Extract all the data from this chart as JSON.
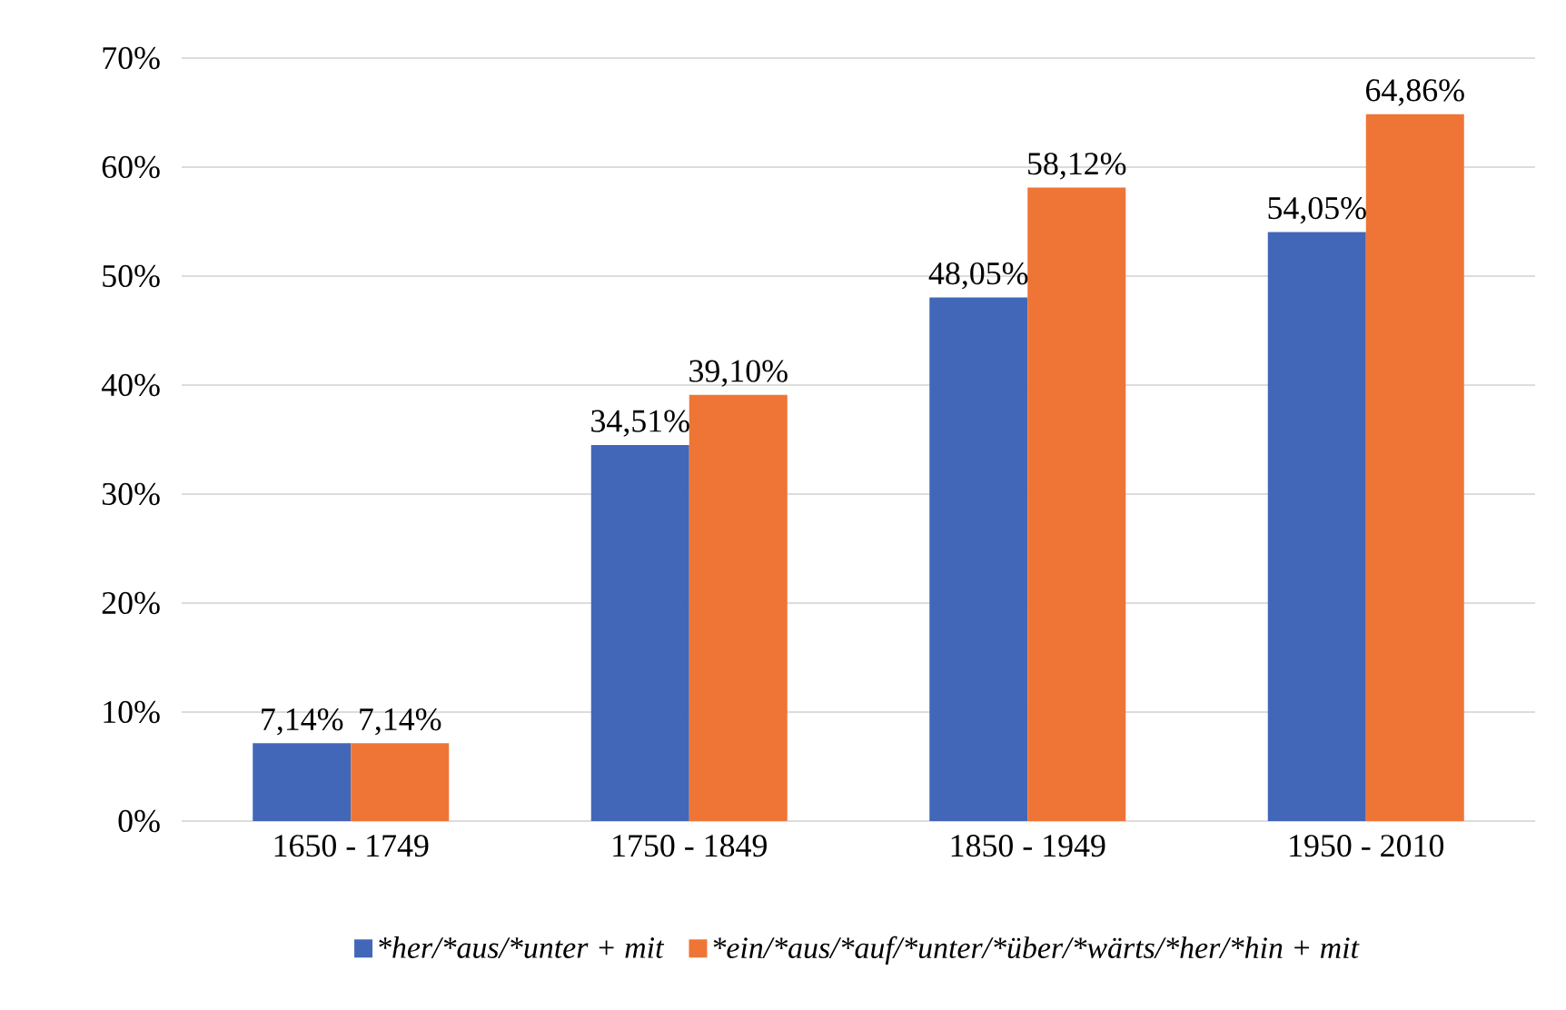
{
  "chart_data": {
    "type": "bar",
    "categories": [
      "1650 - 1749",
      "1750 - 1849",
      "1850 - 1949",
      "1950 - 2010"
    ],
    "series": [
      {
        "name": "*her/*aus/*unter + mit",
        "color": "#4267b8",
        "values": [
          7.14,
          34.51,
          48.05,
          54.05
        ],
        "value_labels": [
          "7,14%",
          "34,51%",
          "48,05%",
          "54,05%"
        ]
      },
      {
        "name": "*ein/*aus/*auf/*unter/*über/*wärts/*her/*hin + mit",
        "color": "#ef7536",
        "values": [
          7.14,
          39.1,
          58.12,
          64.86
        ],
        "value_labels": [
          "7,14%",
          "39,10%",
          "58,12%",
          "64,86%"
        ]
      }
    ],
    "ylim": [
      0,
      70
    ],
    "yticks": [
      {
        "value": 0,
        "label": "0%"
      },
      {
        "value": 10,
        "label": "10%"
      },
      {
        "value": 20,
        "label": "20%"
      },
      {
        "value": 30,
        "label": "30%"
      },
      {
        "value": 40,
        "label": "40%"
      },
      {
        "value": 50,
        "label": "50%"
      },
      {
        "value": 60,
        "label": "60%"
      },
      {
        "value": 70,
        "label": "70%"
      }
    ],
    "grid": "y",
    "legend": "bottom"
  }
}
